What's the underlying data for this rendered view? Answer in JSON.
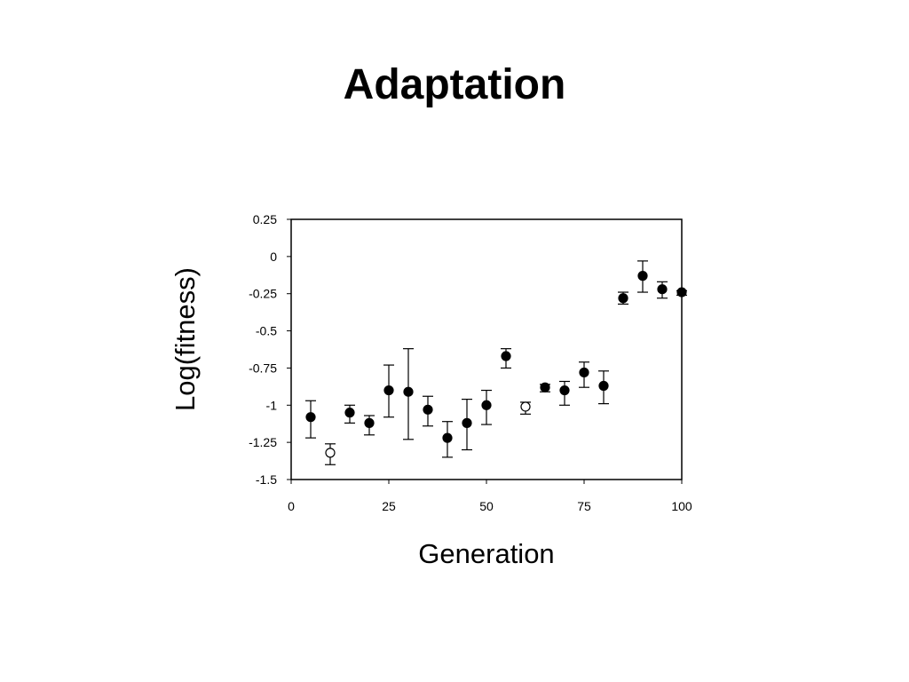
{
  "slide": {
    "title": "Adaptation"
  },
  "chart_data": {
    "type": "scatter",
    "title": "",
    "xlabel": "Generation",
    "ylabel": "Log(fitness)",
    "xlim": [
      0,
      100
    ],
    "ylim": [
      -1.5,
      0.25
    ],
    "x_ticks": [
      0,
      25,
      50,
      75,
      100
    ],
    "x_tick_labels": [
      "0",
      "25",
      "50",
      "75",
      "100"
    ],
    "y_ticks": [
      0.25,
      0,
      -0.25,
      -0.5,
      -0.75,
      -1,
      -1.25,
      -1.5
    ],
    "y_tick_labels": [
      "0.25",
      "0",
      "-0.25",
      "-0.5",
      "-0.75",
      "-1",
      "-1.25",
      "-1.5"
    ],
    "grid": false,
    "error_bars": true,
    "series": [
      {
        "marker": "filled-circle",
        "color": "#000000",
        "points": [
          {
            "x": 5,
            "y": -1.08,
            "err_low": -1.22,
            "err_high": -0.97
          },
          {
            "x": 15,
            "y": -1.05,
            "err_low": -1.12,
            "err_high": -1.0
          },
          {
            "x": 20,
            "y": -1.12,
            "err_low": -1.2,
            "err_high": -1.07
          },
          {
            "x": 25,
            "y": -0.9,
            "err_low": -1.08,
            "err_high": -0.73
          },
          {
            "x": 30,
            "y": -0.91,
            "err_low": -1.23,
            "err_high": -0.62
          },
          {
            "x": 35,
            "y": -1.03,
            "err_low": -1.14,
            "err_high": -0.94
          },
          {
            "x": 40,
            "y": -1.22,
            "err_low": -1.35,
            "err_high": -1.11
          },
          {
            "x": 45,
            "y": -1.12,
            "err_low": -1.3,
            "err_high": -0.96
          },
          {
            "x": 50,
            "y": -1.0,
            "err_low": -1.13,
            "err_high": -0.9
          },
          {
            "x": 55,
            "y": -0.67,
            "err_low": -0.75,
            "err_high": -0.62
          },
          {
            "x": 65,
            "y": -0.88,
            "err_low": -0.91,
            "err_high": -0.86
          },
          {
            "x": 70,
            "y": -0.9,
            "err_low": -1.0,
            "err_high": -0.84
          },
          {
            "x": 75,
            "y": -0.78,
            "err_low": -0.88,
            "err_high": -0.71
          },
          {
            "x": 80,
            "y": -0.87,
            "err_low": -0.99,
            "err_high": -0.77
          },
          {
            "x": 85,
            "y": -0.28,
            "err_low": -0.32,
            "err_high": -0.24
          },
          {
            "x": 90,
            "y": -0.13,
            "err_low": -0.24,
            "err_high": -0.03
          },
          {
            "x": 95,
            "y": -0.22,
            "err_low": -0.28,
            "err_high": -0.17
          },
          {
            "x": 100,
            "y": -0.24,
            "err_low": -0.26,
            "err_high": -0.23
          }
        ]
      },
      {
        "marker": "open-circle",
        "color": "#000000",
        "points": [
          {
            "x": 10,
            "y": -1.32,
            "err_low": -1.4,
            "err_high": -1.26
          },
          {
            "x": 60,
            "y": -1.01,
            "err_low": -1.06,
            "err_high": -0.98
          }
        ]
      }
    ]
  }
}
